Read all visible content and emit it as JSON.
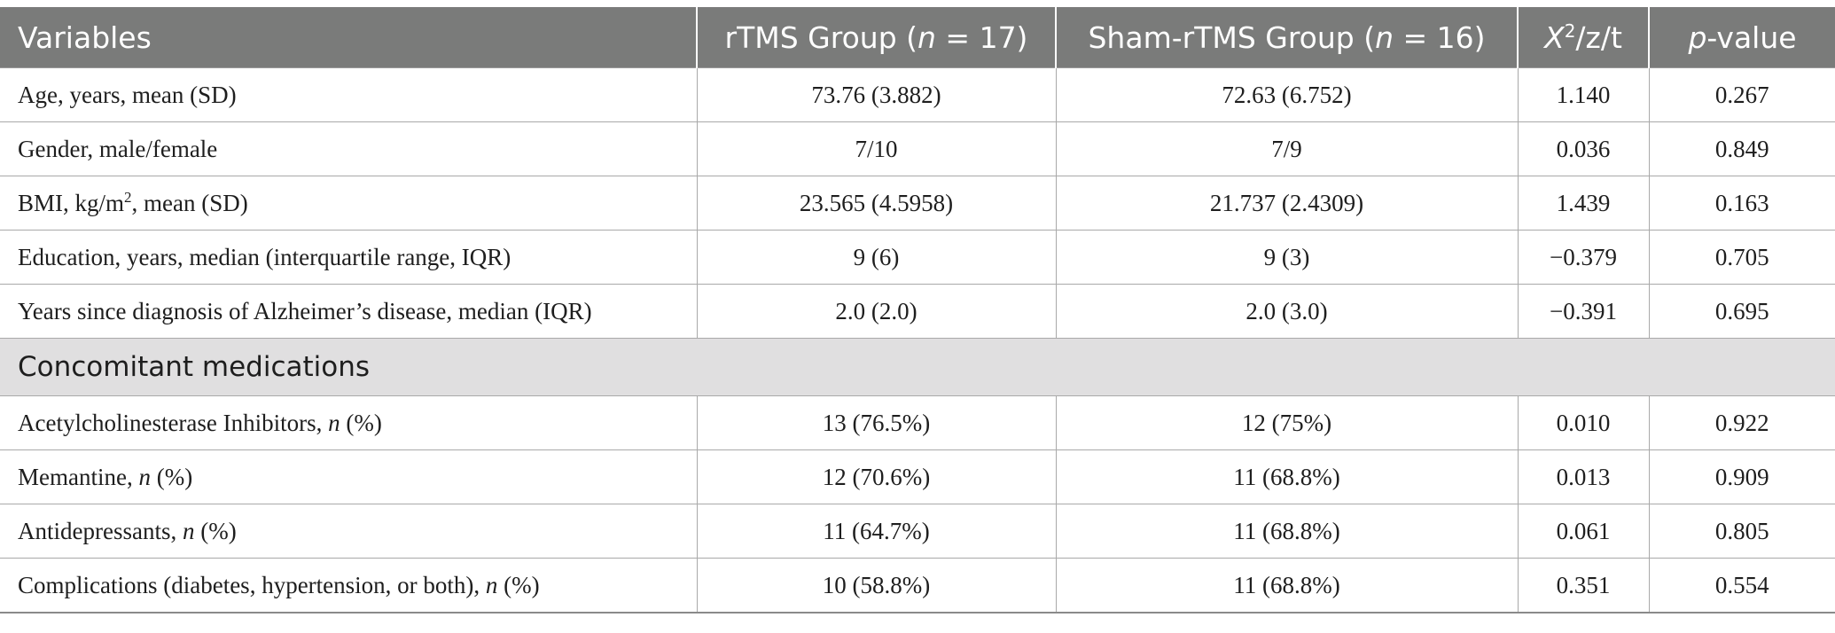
{
  "header": {
    "variables": "Variables",
    "rtms_prefix": "rTMS Group (",
    "rtms_n": "n",
    "rtms_suffix": " = 17)",
    "sham_prefix": "Sham-rTMS Group (",
    "sham_n": "n",
    "sham_suffix": " = 16)",
    "stat_x": "X",
    "stat_sup": "2",
    "stat_rest": "/z/t",
    "p_italic": "p",
    "p_rest": "-value"
  },
  "rows": [
    {
      "label": "Age, years, mean (SD)",
      "rtms": "73.76 (3.882)",
      "sham": "72.63 (6.752)",
      "stat": "1.140",
      "p": "0.267"
    },
    {
      "label": "Gender, male/female",
      "rtms": "7/10",
      "sham": "7/9",
      "stat": "0.036",
      "p": "0.849"
    },
    {
      "label_a": "BMI, kg/m",
      "label_sup": "2",
      "label_b": ", mean (SD)",
      "rtms": "23.565 (4.5958)",
      "sham": "21.737 (2.4309)",
      "stat": "1.439",
      "p": "0.163"
    },
    {
      "label": "Education, years, median (interquartile range, IQR)",
      "rtms": "9 (6)",
      "sham": "9 (3)",
      "stat": "−0.379",
      "p": "0.705"
    },
    {
      "label": "Years since diagnosis of Alzheimer’s disease, median (IQR)",
      "rtms": "2.0 (2.0)",
      "sham": "2.0 (3.0)",
      "stat": "−0.391",
      "p": "0.695"
    }
  ],
  "section_label": "Concomitant medications",
  "med_rows": [
    {
      "label_a": "Acetylcholinesterase Inhibitors, ",
      "label_n": "n",
      "label_b": " (%)",
      "rtms": "13 (76.5%)",
      "sham": "12 (75%)",
      "stat": "0.010",
      "p": "0.922"
    },
    {
      "label_a": "Memantine, ",
      "label_n": "n",
      "label_b": " (%)",
      "rtms": "12 (70.6%)",
      "sham": "11 (68.8%)",
      "stat": "0.013",
      "p": "0.909"
    },
    {
      "label_a": "Antidepressants, ",
      "label_n": "n",
      "label_b": " (%)",
      "rtms": "11 (64.7%)",
      "sham": "11 (68.8%)",
      "stat": "0.061",
      "p": "0.805"
    },
    {
      "label_a": "Complications (diabetes, hypertension, or both), ",
      "label_n": "n",
      "label_b": " (%)",
      "rtms": "10 (58.8%)",
      "sham": "11 (68.8%)",
      "stat": "0.351",
      "p": "0.554"
    }
  ]
}
